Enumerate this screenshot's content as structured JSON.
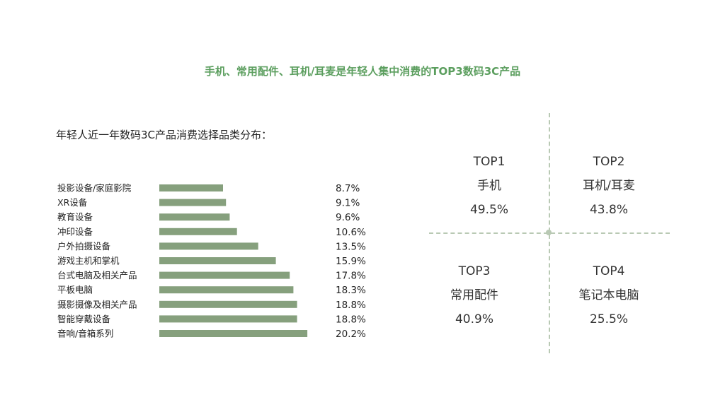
{
  "page": {
    "title": "手机、常用配件、耳机/耳麦是年轻人集中消费的TOP3数码3C产品"
  },
  "chart_data": {
    "type": "bar",
    "orientation": "horizontal",
    "title": "年轻人近一年数码3C产品消费选择品类分布：",
    "categories": [
      "投影设备/家庭影院",
      "XR设备",
      "教育设备",
      "冲印设备",
      "户外拍摄设备",
      "游戏主机和掌机",
      "台式电脑及相关产品",
      "平板电脑",
      "摄影摄像及相关产品",
      "智能穿戴设备",
      "音响/音箱系列"
    ],
    "values": [
      8.7,
      9.1,
      9.6,
      10.6,
      13.5,
      15.9,
      17.8,
      18.3,
      18.8,
      18.8,
      20.2
    ],
    "value_labels": [
      "8.7%",
      "9.1%",
      "9.6%",
      "10.6%",
      "13.5%",
      "15.9%",
      "17.8%",
      "18.3%",
      "18.8%",
      "18.8%",
      "20.2%"
    ],
    "unit": "%",
    "colors": {
      "bar": "#86a07d",
      "title": "#5b9e5e"
    }
  },
  "top_products": [
    {
      "rank": "TOP1",
      "name": "手机",
      "value": "49.5%"
    },
    {
      "rank": "TOP2",
      "name": "耳机/耳麦",
      "value": "43.8%"
    },
    {
      "rank": "TOP3",
      "name": "常用配件",
      "value": "40.9%"
    },
    {
      "rank": "TOP4",
      "name": "笔记本电脑",
      "value": "25.5%"
    }
  ]
}
